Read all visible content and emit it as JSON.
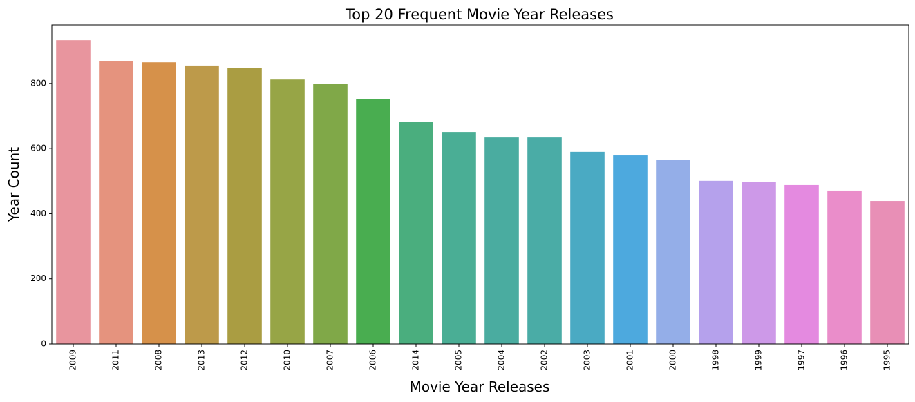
{
  "chart_data": {
    "type": "bar",
    "title": "Top 20 Frequent Movie Year Releases",
    "xlabel": "Movie Year Releases",
    "ylabel": "Year Count",
    "ylim": [
      0,
      980
    ],
    "yticks": [
      0,
      200,
      400,
      600,
      800
    ],
    "grid": false,
    "categories": [
      "2009",
      "2011",
      "2008",
      "2013",
      "2012",
      "2010",
      "2007",
      "2006",
      "2014",
      "2005",
      "2004",
      "2002",
      "2003",
      "2001",
      "2000",
      "1998",
      "1999",
      "1997",
      "1996",
      "1995"
    ],
    "values": [
      933,
      868,
      865,
      855,
      847,
      812,
      798,
      753,
      681,
      651,
      634,
      634,
      590,
      579,
      565,
      501,
      498,
      488,
      471,
      439
    ],
    "colors": [
      "#e8959e",
      "#e5937e",
      "#d6914a",
      "#bd9a4a",
      "#aa9d42",
      "#97a546",
      "#80a848",
      "#49ad50",
      "#4aae7e",
      "#4aae95",
      "#4aaca0",
      "#4aaca6",
      "#4aaac3",
      "#4da9de",
      "#94aee8",
      "#b5a1ec",
      "#cd99e8",
      "#e48ae0",
      "#ea8dca",
      "#e88fb6"
    ]
  }
}
